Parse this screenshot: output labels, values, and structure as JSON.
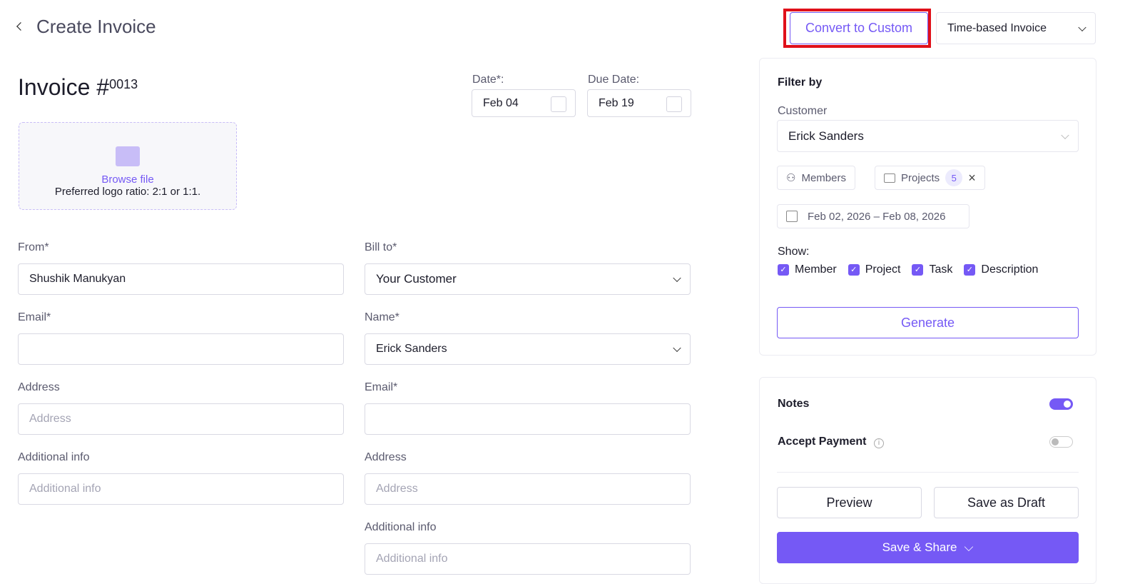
{
  "header": {
    "back_icon": "chevron-left-icon",
    "title": "Create Invoice",
    "convert_label": "Convert to Custom",
    "invoice_type": "Time-based Invoice"
  },
  "invoice": {
    "title": "Invoice #",
    "number": "0013",
    "date_label": "Date*:",
    "date": "Feb 04",
    "due_label": "Due Date:",
    "due": "Feb 19"
  },
  "logo": {
    "browse": "Browse file",
    "hint": "Preferred logo ratio: 2:1 or 1:1."
  },
  "from": {
    "label": "From*",
    "value": "Shushik Manukyan",
    "email_label": "Email*",
    "address_label": "Address",
    "address_placeholder": "Address",
    "info_label": "Additional info",
    "info_placeholder": "Additional info"
  },
  "bill": {
    "label": "Bill to*",
    "value": "Your Customer",
    "name_label": "Name*",
    "name": "Erick Sanders",
    "email_label": "Email*",
    "address_label": "Address",
    "address_placeholder": "Address",
    "info_label": "Additional info",
    "info_placeholder": "Additional info"
  },
  "filter": {
    "title": "Filter by",
    "customer_label": "Customer",
    "customer": "Erick Sanders",
    "members": "Members",
    "projects": "Projects",
    "projects_count": "5",
    "date_range": "Feb 02, 2026 – Feb 08, 2026",
    "show_label": "Show:",
    "show": [
      "Member",
      "Project",
      "Task",
      "Description"
    ],
    "generate": "Generate"
  },
  "options": {
    "notes": "Notes",
    "notes_on": true,
    "accept_payment": "Accept Payment",
    "accept_on": false,
    "preview": "Preview",
    "draft": "Save as Draft",
    "save_share": "Save & Share"
  },
  "colors": {
    "accent": "#7559f5",
    "highlight": "#e0101a"
  }
}
